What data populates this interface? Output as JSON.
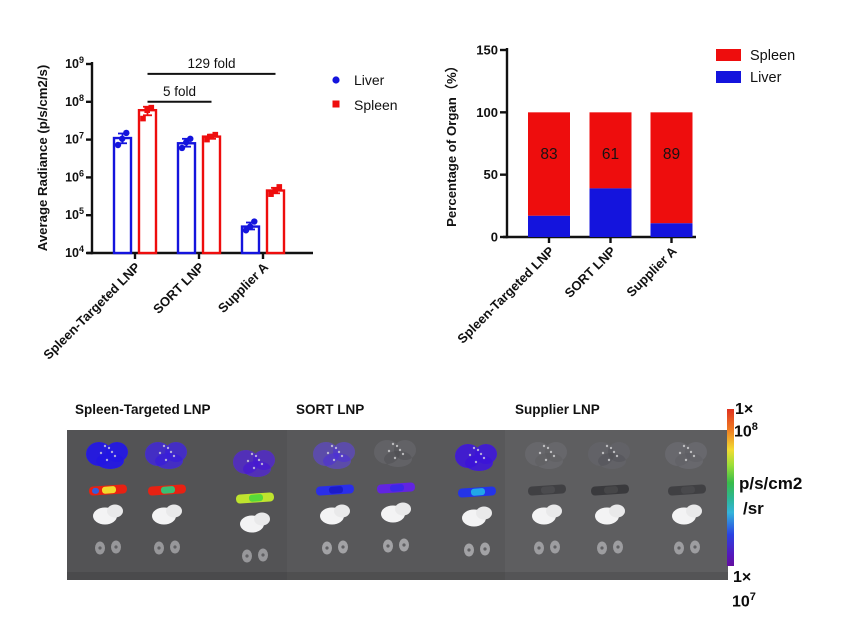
{
  "colors": {
    "liver_blue": "#1414dd",
    "spleen_red": "#ee0d0d",
    "annotation_black": "#111111"
  },
  "chart_data": [
    {
      "type": "bar",
      "scale": "log",
      "title": "",
      "ylabel": "Average Radiance (p/s/cm2/s)",
      "ylim_exponents": [
        4,
        9
      ],
      "categories": [
        "Spleen-Targeted LNP",
        "SORT LNP",
        "Supplier A"
      ],
      "series": [
        {
          "name": "Liver",
          "color": "#1414dd",
          "marker": "circle",
          "means": [
            11000000.0,
            8000000.0,
            50000.0
          ],
          "points": [
            [
              7200000.0,
              15000000.0,
              10500000.0
            ],
            [
              6000000.0,
              10500000.0,
              8500000.0
            ],
            [
              40000.0,
              68000.0,
              50000.0
            ]
          ],
          "err_lo": [
            8000000.0,
            6500000.0,
            42000.0
          ],
          "err_hi": [
            14500000.0,
            10500000.0,
            64000.0
          ]
        },
        {
          "name": "Spleen",
          "color": "#ee0d0d",
          "marker": "square",
          "means": [
            60000000.0,
            12000000.0,
            450000.0
          ],
          "points": [
            [
              36000000.0,
              70000000.0,
              60000000.0
            ],
            [
              10000000.0,
              13500000.0,
              12000000.0
            ],
            [
              360000.0,
              560000.0,
              460000.0
            ]
          ],
          "err_lo": [
            44000000.0,
            10500000.0,
            380000.0
          ],
          "err_hi": [
            74000000.0,
            13500000.0,
            530000.0
          ]
        }
      ],
      "annotations": [
        {
          "label": "129 fold",
          "from_group": 0,
          "to_group": 2,
          "y_value": 550000000.0
        },
        {
          "label": "5 fold",
          "from_group": 0,
          "to_group": 1,
          "y_value": 100000000.0
        }
      ],
      "legend": [
        "Liver",
        "Spleen"
      ],
      "legend_position": "right"
    },
    {
      "type": "stacked-bar",
      "title": "",
      "ylabel": "Percentage of Organ（%）",
      "ylim": [
        0,
        150
      ],
      "yticks": [
        0,
        50,
        100,
        150
      ],
      "categories": [
        "Spleen-Targeted LNP",
        "SORT LNP",
        "Supplier A"
      ],
      "series": [
        {
          "name": "Liver",
          "color": "#1414dd",
          "values": [
            17,
            39,
            11
          ]
        },
        {
          "name": "Spleen",
          "color": "#ee0d0d",
          "values": [
            83,
            61,
            89
          ]
        }
      ],
      "bar_labels": [
        "83",
        "61",
        "89"
      ],
      "legend": [
        "Spleen",
        "Liver"
      ],
      "legend_position": "top-right"
    }
  ],
  "organ_image": {
    "section_labels": [
      "Spleen-Targeted LNP",
      "SORT LNP",
      "Supplier LNP"
    ],
    "row_organs": [
      "liver",
      "spleen",
      "stomach",
      "kidneys"
    ],
    "bg_colors": [
      "#535355",
      "#58585a",
      "#5e5e60"
    ],
    "panels": [
      {
        "cols": [
          41,
          100,
          188
        ],
        "col_dy": [
          0,
          0,
          8
        ],
        "livers": [
          {
            "tint": "#2216e2",
            "op": 0.95
          },
          {
            "tint": "#3a1ed8",
            "op": 0.8
          },
          {
            "tint": "#4618d2",
            "op": 0.72
          }
        ],
        "spleens": [
          [
            "#e82112",
            "#f2e52e",
            "#2a62e8"
          ],
          [
            "#e82112",
            "#30c87a"
          ],
          [
            "#bfe42e",
            "#52d83a"
          ]
        ],
        "kidney": "#97979a"
      },
      {
        "cols": [
          48,
          109,
          190
        ],
        "col_dy": [
          0,
          -2,
          2
        ],
        "livers": [
          {
            "tint": "#4a2ae0",
            "op": 0.5
          },
          {
            "tint": "#3a3a40",
            "op": 0.25
          },
          {
            "tint": "#3c14d8",
            "op": 0.9
          }
        ],
        "spleens": [
          [
            "#2a2ee8",
            "#1a1ac8"
          ],
          [
            "#6224e0",
            "#3a28e8"
          ],
          [
            "#2434e8",
            "#22aee8"
          ]
        ],
        "kidney": "#a2a2a5"
      },
      {
        "cols": [
          42,
          105,
          182
        ],
        "col_dy": [
          0,
          0,
          0
        ],
        "livers": [
          {
            "tint": "#55555a",
            "op": 0.3
          },
          {
            "tint": "#4a4a50",
            "op": 0.35
          },
          {
            "tint": "#55555a",
            "op": 0.25
          }
        ],
        "spleens": [
          [
            "#404043",
            "#4c4c4f"
          ],
          [
            "#3a3a3d",
            "#474749"
          ],
          [
            "#404043",
            "#4a4a4d"
          ]
        ],
        "kidney": "#9d9da0"
      }
    ],
    "colorbar": {
      "max_prefix": "1×",
      "max_base": "10",
      "max_exp": "8",
      "unit_line1": "p/s/cm2",
      "unit_line2": "/sr",
      "min_prefix": "1×",
      "min_base": "10",
      "min_exp": "7",
      "stops": [
        "#e03220 0%",
        "#ee7a22 13%",
        "#f2dc32 26%",
        "#9ade38 36%",
        "#38bc4a 47%",
        "#2cb694 57%",
        "#34b4da 66%",
        "#2a42e2 80%",
        "#5518bc 93%",
        "#640e9e 100%"
      ]
    }
  }
}
